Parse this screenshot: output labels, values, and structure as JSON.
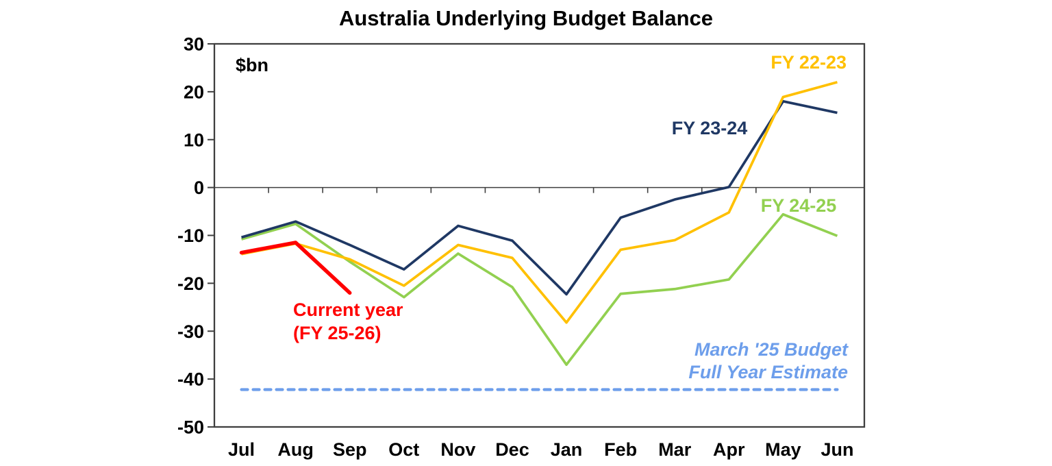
{
  "chart_data": {
    "type": "line",
    "title": "Australia Underlying Budget Balance",
    "unit_label": "$bn",
    "categories": [
      "Jul",
      "Aug",
      "Sep",
      "Oct",
      "Nov",
      "Dec",
      "Jan",
      "Feb",
      "Mar",
      "Apr",
      "May",
      "Jun"
    ],
    "ylim": [
      -50,
      30
    ],
    "ytick_interval": 10,
    "grid": "off",
    "legend_position": "inline-labels",
    "series": [
      {
        "name": "FY 22-23",
        "color": "#FFC000",
        "values": [
          -13.9,
          -11.7,
          -15.0,
          -20.5,
          -12.0,
          -14.7,
          -28.2,
          -13.0,
          -11.0,
          -5.2,
          18.9,
          22.0
        ]
      },
      {
        "name": "FY 23-24",
        "color": "#1F3864",
        "values": [
          -10.4,
          -7.1,
          -12.0,
          -17.1,
          -8.0,
          -11.1,
          -22.3,
          -6.3,
          -2.5,
          0.1,
          18.0,
          15.6
        ]
      },
      {
        "name": "FY 24-25",
        "color": "#92D050",
        "values": [
          -10.8,
          -7.6,
          -15.5,
          -22.9,
          -13.8,
          -20.8,
          -37.0,
          -22.2,
          -21.2,
          -19.2,
          -5.6,
          -10.1
        ]
      },
      {
        "name": "Current year (FY 25-26)",
        "label_lines": [
          "Current year",
          "(FY 25-26)"
        ],
        "color": "#FF0000",
        "values": [
          -13.6,
          -11.5,
          -22.0
        ]
      }
    ],
    "reference_line": {
      "value": -42.2,
      "color": "#6D9EEB",
      "style": "dashed",
      "label_lines": [
        "March '25 Budget",
        "Full Year Estimate"
      ]
    },
    "ytick_labels": [
      "30",
      "20",
      "10",
      "0",
      "-10",
      "-20",
      "-30",
      "-40",
      "-50"
    ]
  }
}
